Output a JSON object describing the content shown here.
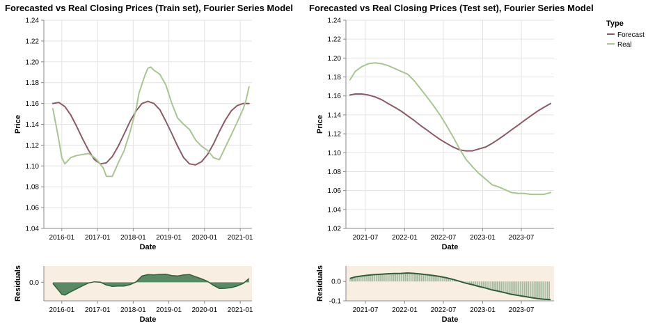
{
  "colors": {
    "forecast": "#8c5a64",
    "real": "#a8c690",
    "residual_fill": "#5a8a65",
    "residual_stroke": "#2f5f3a",
    "residual_bg": "#f8efe2",
    "grid": "#e3e3e3",
    "axis": "#888888"
  },
  "legend": {
    "title": "Type",
    "items": [
      {
        "label": "Forecast",
        "color_key": "forecast"
      },
      {
        "label": "Real",
        "color_key": "real"
      }
    ]
  },
  "chart_data": [
    {
      "id": "train_main",
      "type": "line",
      "title": "Forecasted vs Real Closing Prices (Train set), Fourier Series Model",
      "xlabel": "Date",
      "ylabel": "Price",
      "x_range": [
        "2015-07-01",
        "2021-05-01"
      ],
      "ylim": [
        1.04,
        1.24
      ],
      "y_ticks": [
        1.04,
        1.06,
        1.08,
        1.1,
        1.12,
        1.14,
        1.16,
        1.18,
        1.2,
        1.22,
        1.24
      ],
      "x_ticks": [
        "2016-01",
        "2017-01",
        "2018-01",
        "2019-01",
        "2020-01",
        "2021-01"
      ],
      "grid": true,
      "series": [
        {
          "name": "Forecast",
          "color_key": "forecast",
          "x": [
            "2015-10-01",
            "2015-12-01",
            "2016-02-01",
            "2016-04-01",
            "2016-06-01",
            "2016-08-01",
            "2016-10-01",
            "2016-12-01",
            "2017-02-01",
            "2017-04-01",
            "2017-06-01",
            "2017-08-01",
            "2017-10-01",
            "2017-12-01",
            "2018-02-01",
            "2018-04-01",
            "2018-06-01",
            "2018-08-01",
            "2018-10-01",
            "2018-12-01",
            "2019-02-01",
            "2019-04-01",
            "2019-06-01",
            "2019-08-01",
            "2019-10-01",
            "2019-12-01",
            "2020-02-01",
            "2020-04-01",
            "2020-06-01",
            "2020-08-01",
            "2020-10-01",
            "2020-12-01",
            "2021-02-01",
            "2021-04-01"
          ],
          "y": [
            1.16,
            1.161,
            1.157,
            1.149,
            1.138,
            1.126,
            1.115,
            1.106,
            1.102,
            1.103,
            1.109,
            1.119,
            1.131,
            1.143,
            1.153,
            1.16,
            1.162,
            1.16,
            1.154,
            1.143,
            1.131,
            1.119,
            1.108,
            1.102,
            1.101,
            1.104,
            1.111,
            1.121,
            1.133,
            1.144,
            1.153,
            1.158,
            1.16,
            1.16
          ]
        },
        {
          "name": "Real",
          "color_key": "real",
          "x": [
            "2015-10-01",
            "2015-11-01",
            "2015-12-01",
            "2016-01-01",
            "2016-02-01",
            "2016-04-01",
            "2016-06-01",
            "2016-08-01",
            "2016-10-01",
            "2016-12-01",
            "2017-01-01",
            "2017-03-01",
            "2017-04-01",
            "2017-06-01",
            "2017-08-01",
            "2017-10-01",
            "2017-12-01",
            "2018-02-01",
            "2018-03-01",
            "2018-05-01",
            "2018-06-01",
            "2018-07-01",
            "2018-08-01",
            "2018-10-01",
            "2018-12-01",
            "2019-02-01",
            "2019-04-01",
            "2019-06-01",
            "2019-08-01",
            "2019-10-01",
            "2019-12-01",
            "2020-02-01",
            "2020-04-01",
            "2020-06-01",
            "2020-08-01",
            "2020-10-01",
            "2020-12-01",
            "2021-02-01",
            "2021-03-01",
            "2021-04-01"
          ],
          "y": [
            1.155,
            1.14,
            1.125,
            1.108,
            1.102,
            1.108,
            1.11,
            1.111,
            1.112,
            1.108,
            1.105,
            1.098,
            1.09,
            1.09,
            1.103,
            1.115,
            1.133,
            1.155,
            1.17,
            1.187,
            1.194,
            1.195,
            1.192,
            1.188,
            1.178,
            1.16,
            1.146,
            1.14,
            1.135,
            1.125,
            1.119,
            1.115,
            1.108,
            1.106,
            1.118,
            1.13,
            1.142,
            1.155,
            1.163,
            1.176
          ]
        }
      ]
    },
    {
      "id": "test_main",
      "type": "line",
      "title": "Forecasted vs Real Closing Prices (Test set), Fourier Series Model",
      "xlabel": "Date",
      "ylabel": "Price",
      "x_range": [
        "2021-04-01",
        "2023-12-01"
      ],
      "ylim": [
        1.02,
        1.24
      ],
      "y_ticks": [
        1.02,
        1.04,
        1.06,
        1.08,
        1.1,
        1.12,
        1.14,
        1.16,
        1.18,
        1.2,
        1.22,
        1.24
      ],
      "x_ticks": [
        "2021-07",
        "2022-01",
        "2022-07",
        "2023-01",
        "2023-07"
      ],
      "grid": true,
      "series": [
        {
          "name": "Forecast",
          "color_key": "forecast",
          "x": [
            "2021-04-20",
            "2021-05-15",
            "2021-06-15",
            "2021-07-15",
            "2021-08-15",
            "2021-09-15",
            "2021-10-15",
            "2021-11-15",
            "2021-12-15",
            "2022-01-15",
            "2022-02-15",
            "2022-03-15",
            "2022-04-15",
            "2022-05-15",
            "2022-06-15",
            "2022-07-15",
            "2022-08-15",
            "2022-09-15",
            "2022-10-15",
            "2022-11-15",
            "2022-12-15",
            "2023-01-15",
            "2023-02-15",
            "2023-03-15",
            "2023-04-15",
            "2023-05-15",
            "2023-06-15",
            "2023-07-15",
            "2023-08-15",
            "2023-09-15",
            "2023-10-15",
            "2023-11-15"
          ],
          "y": [
            1.161,
            1.162,
            1.162,
            1.161,
            1.159,
            1.156,
            1.152,
            1.148,
            1.144,
            1.139,
            1.134,
            1.129,
            1.124,
            1.119,
            1.114,
            1.11,
            1.106,
            1.103,
            1.102,
            1.102,
            1.104,
            1.106,
            1.11,
            1.114,
            1.119,
            1.124,
            1.129,
            1.134,
            1.139,
            1.144,
            1.148,
            1.152
          ]
        },
        {
          "name": "Real",
          "color_key": "real",
          "x": [
            "2021-04-20",
            "2021-05-15",
            "2021-06-15",
            "2021-07-15",
            "2021-08-15",
            "2021-09-15",
            "2021-10-15",
            "2021-11-15",
            "2021-12-15",
            "2022-01-15",
            "2022-02-15",
            "2022-03-15",
            "2022-04-15",
            "2022-05-15",
            "2022-06-15",
            "2022-07-15",
            "2022-08-15",
            "2022-09-15",
            "2022-10-15",
            "2022-11-15",
            "2022-12-15",
            "2023-01-15",
            "2023-02-15",
            "2023-03-15",
            "2023-04-15",
            "2023-05-15",
            "2023-06-15",
            "2023-07-15",
            "2023-08-15",
            "2023-09-15",
            "2023-10-15",
            "2023-11-15"
          ],
          "y": [
            1.177,
            1.186,
            1.191,
            1.194,
            1.195,
            1.194,
            1.192,
            1.189,
            1.186,
            1.183,
            1.176,
            1.168,
            1.159,
            1.15,
            1.14,
            1.129,
            1.117,
            1.104,
            1.093,
            1.085,
            1.078,
            1.072,
            1.066,
            1.064,
            1.061,
            1.058,
            1.057,
            1.057,
            1.056,
            1.056,
            1.056,
            1.058
          ]
        }
      ]
    },
    {
      "id": "train_resid",
      "type": "area",
      "title": "",
      "xlabel": "Date",
      "ylabel": "Residuals",
      "x_range": [
        "2015-07-01",
        "2021-05-01"
      ],
      "ylim": [
        -0.08,
        0.07
      ],
      "y_ticks": [
        0.0
      ],
      "y_tick_labels": [
        "0.0"
      ],
      "x_ticks": [
        "2016-01",
        "2017-01",
        "2018-01",
        "2019-01",
        "2020-01",
        "2021-01"
      ],
      "grid": false,
      "series": [
        {
          "name": "Residuals",
          "x": [
            "2015-10-01",
            "2015-12-01",
            "2016-01-01",
            "2016-02-01",
            "2016-04-01",
            "2016-06-01",
            "2016-08-01",
            "2016-10-01",
            "2016-12-01",
            "2017-02-01",
            "2017-04-01",
            "2017-06-01",
            "2017-08-01",
            "2017-10-01",
            "2017-12-01",
            "2018-02-01",
            "2018-04-01",
            "2018-06-01",
            "2018-08-01",
            "2018-10-01",
            "2018-12-01",
            "2019-02-01",
            "2019-04-01",
            "2019-06-01",
            "2019-08-01",
            "2019-10-01",
            "2019-12-01",
            "2020-02-01",
            "2020-04-01",
            "2020-06-01",
            "2020-08-01",
            "2020-10-01",
            "2020-12-01",
            "2021-02-01",
            "2021-04-01"
          ],
          "y": [
            -0.005,
            -0.036,
            -0.052,
            -0.055,
            -0.041,
            -0.028,
            -0.015,
            -0.003,
            0.002,
            0.0,
            -0.012,
            -0.018,
            -0.016,
            -0.016,
            -0.01,
            0.002,
            0.027,
            0.033,
            0.032,
            0.034,
            0.035,
            0.029,
            0.027,
            0.032,
            0.033,
            0.024,
            0.015,
            0.004,
            -0.013,
            -0.027,
            -0.026,
            -0.023,
            -0.016,
            -0.005,
            0.016
          ]
        }
      ]
    },
    {
      "id": "test_resid",
      "type": "bar",
      "title": "",
      "xlabel": "Date",
      "ylabel": "Residuals",
      "x_range": [
        "2021-04-01",
        "2023-12-01"
      ],
      "ylim": [
        -0.1,
        0.08
      ],
      "y_ticks": [
        0.0,
        -0.1
      ],
      "y_tick_labels": [
        "0.0",
        "-0.1"
      ],
      "x_ticks": [
        "2021-07",
        "2022-01",
        "2022-07",
        "2023-01",
        "2023-07"
      ],
      "grid": false,
      "series": [
        {
          "name": "Residuals",
          "x": [
            "2021-04-20",
            "2021-05-15",
            "2021-06-15",
            "2021-07-15",
            "2021-08-15",
            "2021-09-15",
            "2021-10-15",
            "2021-11-15",
            "2021-12-15",
            "2022-01-15",
            "2022-02-15",
            "2022-03-15",
            "2022-04-15",
            "2022-05-15",
            "2022-06-15",
            "2022-07-15",
            "2022-08-15",
            "2022-09-15",
            "2022-10-15",
            "2022-11-15",
            "2022-12-15",
            "2023-01-15",
            "2023-02-15",
            "2023-03-15",
            "2023-04-15",
            "2023-05-15",
            "2023-06-15",
            "2023-07-15",
            "2023-08-15",
            "2023-09-15",
            "2023-10-15",
            "2023-11-15"
          ],
          "y": [
            0.016,
            0.024,
            0.029,
            0.033,
            0.036,
            0.038,
            0.04,
            0.041,
            0.042,
            0.044,
            0.042,
            0.039,
            0.035,
            0.031,
            0.026,
            0.019,
            0.011,
            0.001,
            -0.009,
            -0.017,
            -0.026,
            -0.034,
            -0.044,
            -0.05,
            -0.058,
            -0.066,
            -0.072,
            -0.077,
            -0.083,
            -0.088,
            -0.092,
            -0.094
          ]
        }
      ]
    }
  ]
}
